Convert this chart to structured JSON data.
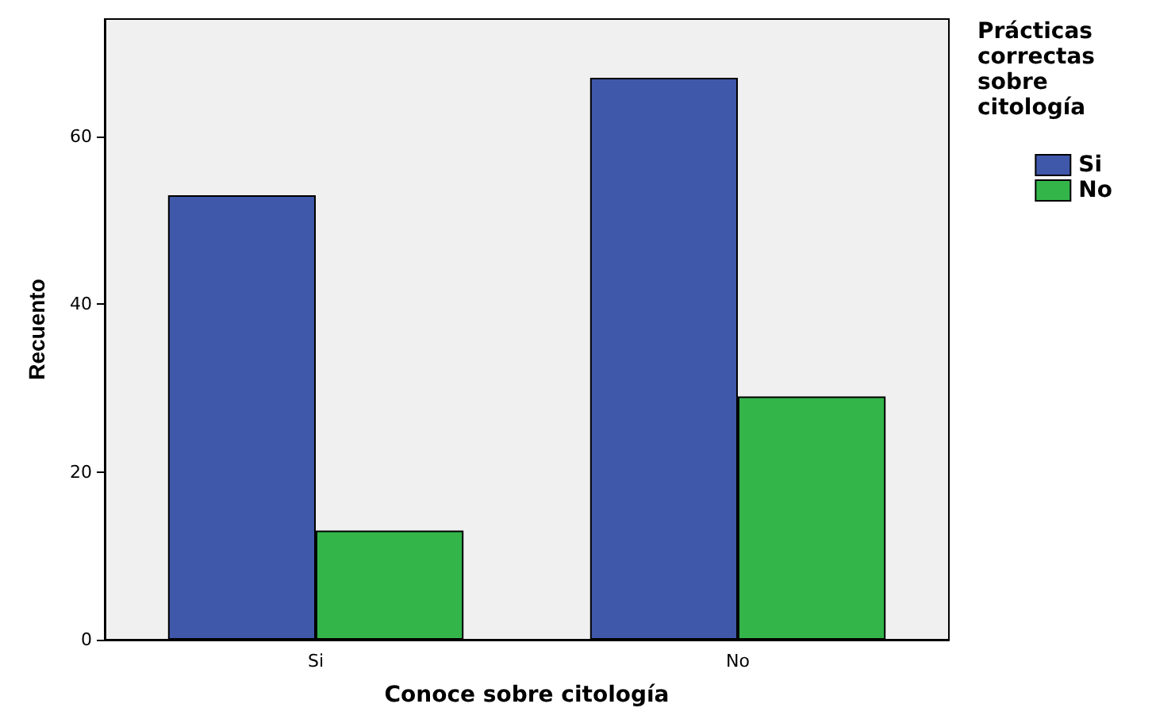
{
  "chart_data": {
    "type": "bar",
    "xlabel": "Conoce sobre citología",
    "ylabel": "Recuento",
    "legend_title": "Prácticas correctas sobre citología",
    "categories": [
      "Si",
      "No"
    ],
    "series": [
      {
        "name": "Si",
        "color": "#3f58aa",
        "values": [
          53,
          67
        ]
      },
      {
        "name": "No",
        "color": "#33b54a",
        "values": [
          13,
          29
        ]
      }
    ],
    "ylim": [
      0,
      74
    ],
    "yticks": [
      0,
      20,
      40,
      60
    ],
    "grid": false,
    "legend": "top right"
  }
}
